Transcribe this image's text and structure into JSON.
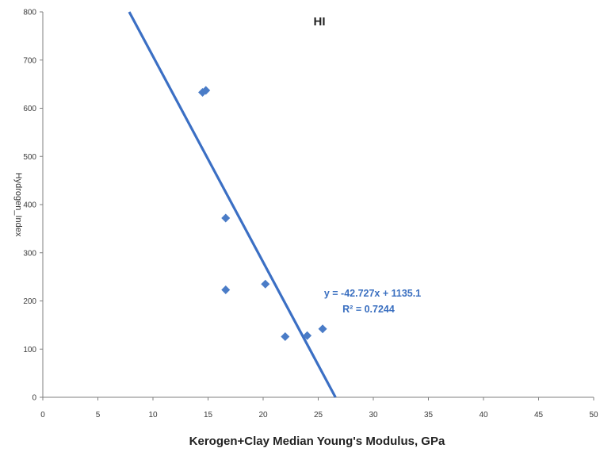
{
  "chart_data": {
    "type": "scatter",
    "title": "HI",
    "xlabel": "Kerogen+Clay Median Young's Modulus, GPa",
    "ylabel": "Hydrogen_Index",
    "xlim": [
      0,
      50
    ],
    "ylim": [
      0,
      800
    ],
    "x_ticks": [
      "0",
      "5",
      "10",
      "15",
      "20",
      "25",
      "30",
      "35",
      "40",
      "45",
      "50"
    ],
    "y_ticks": [
      "0",
      "100",
      "200",
      "300",
      "400",
      "500",
      "600",
      "700",
      "800"
    ],
    "grid": false,
    "series": [
      {
        "points": [
          {
            "x": 14.5,
            "y": 633
          },
          {
            "x": 14.8,
            "y": 637
          },
          {
            "x": 16.6,
            "y": 372
          },
          {
            "x": 16.6,
            "y": 223
          },
          {
            "x": 20.2,
            "y": 235
          },
          {
            "x": 22.0,
            "y": 126
          },
          {
            "x": 24.0,
            "y": 128
          },
          {
            "x": 25.4,
            "y": 142
          }
        ]
      }
    ],
    "trendline": {
      "slope": -42.727,
      "intercept": 1135.1,
      "equation": "y = -42.727x + 1135.1",
      "r2_label": "R² = 0.7244"
    },
    "colors": {
      "marker": "#4a7cc7",
      "trendline": "#3b6fc4",
      "annotation": "#3a6fc0",
      "axis": "#7f7f7f"
    }
  }
}
